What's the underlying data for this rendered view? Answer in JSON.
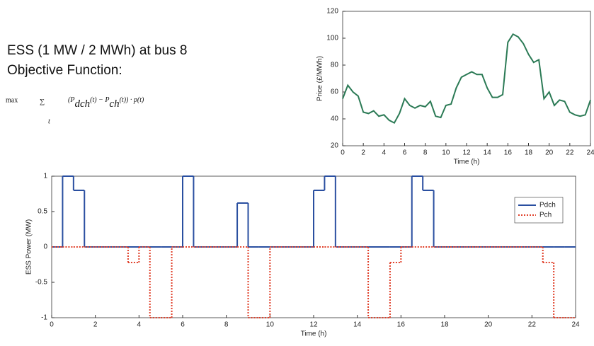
{
  "slide": {
    "lines": [
      "ESS (1 MW / 2 MWh) at bus 8",
      "Objective Function:"
    ],
    "formula": {
      "max": "max",
      "sum": "∑",
      "index": "t",
      "terms": [
        "(",
        "P",
        "dch",
        "(t) − ",
        "P",
        "ch",
        "(t)) · p(t)"
      ]
    }
  },
  "chart_data": [
    {
      "type": "line",
      "xlabel": "Time (h)",
      "ylabel": "Price (£/MWh)",
      "color": "#2b7a55",
      "linestyle": "solid",
      "x": [
        0,
        0.5,
        1,
        1.5,
        2,
        2.5,
        3,
        3.5,
        4,
        4.5,
        5,
        5.5,
        6,
        6.5,
        7,
        7.5,
        8,
        8.5,
        9,
        9.5,
        10,
        10.5,
        11,
        11.5,
        12,
        12.5,
        13,
        13.5,
        14,
        14.5,
        15,
        15.5,
        16,
        16.5,
        17,
        17.5,
        18,
        18.5,
        19,
        19.5,
        20,
        20.5,
        21,
        21.5,
        22,
        22.5,
        23,
        23.5,
        24
      ],
      "values": [
        55,
        65,
        60,
        57,
        45,
        44,
        46,
        42,
        43,
        39,
        37,
        44,
        55,
        50,
        48,
        50,
        49,
        53,
        42,
        41,
        50,
        51,
        63,
        71,
        73,
        75,
        73,
        73,
        63,
        56,
        56,
        58,
        97,
        103,
        101,
        96,
        88,
        82,
        84,
        55,
        60,
        50,
        54,
        53,
        45,
        43,
        42,
        43,
        54
      ],
      "xlim": [
        0,
        24
      ],
      "xticks": [
        0,
        2,
        4,
        6,
        8,
        10,
        12,
        14,
        16,
        18,
        20,
        22,
        24
      ],
      "ylim": [
        20,
        120
      ],
      "yticks": [
        20,
        40,
        60,
        80,
        100,
        120
      ]
    },
    {
      "type": "line",
      "drawstyle": "steps-post",
      "xlabel": "Time (h)",
      "ylabel": "ESS Power (MW)",
      "legend": "upper right",
      "x": [
        0,
        0.5,
        1,
        1.5,
        2,
        2.5,
        3,
        3.5,
        4,
        4.5,
        5,
        5.5,
        6,
        6.5,
        7,
        7.5,
        8,
        8.5,
        9,
        9.5,
        10,
        10.5,
        11,
        11.5,
        12,
        12.5,
        13,
        13.5,
        14,
        14.5,
        15,
        15.5,
        16,
        16.5,
        17,
        17.5,
        18,
        18.5,
        19,
        19.5,
        20,
        20.5,
        21,
        21.5,
        22,
        22.5,
        23,
        23.5
      ],
      "series": [
        {
          "name": "Pdch",
          "color": "#2a4fa0",
          "linestyle": "solid",
          "values": [
            0,
            1,
            0.8,
            0,
            0,
            0,
            0,
            0,
            0,
            0,
            0,
            0,
            1,
            0,
            0,
            0,
            0,
            0.62,
            0,
            0,
            0,
            0,
            0,
            0,
            0.8,
            1,
            0,
            0,
            0,
            0,
            0,
            0,
            0,
            1,
            0.8,
            0,
            0,
            0,
            0,
            0,
            0,
            0,
            0,
            0,
            0,
            0,
            0,
            0
          ]
        },
        {
          "name": "Pch",
          "color": "#e0402a",
          "linestyle": "dotted",
          "values": [
            0,
            0,
            0,
            0,
            0,
            0,
            0,
            -0.22,
            0,
            -1,
            -1,
            0,
            0,
            0,
            0,
            0,
            0,
            0,
            -1,
            -1,
            0,
            0,
            0,
            0,
            0,
            0,
            0,
            0,
            0,
            -1,
            -1,
            -0.22,
            0,
            0,
            0,
            0,
            0,
            0,
            0,
            0,
            0,
            0,
            0,
            0,
            0,
            -0.22,
            -1,
            -1
          ]
        }
      ],
      "xlim": [
        0,
        24
      ],
      "xticks": [
        0,
        2,
        4,
        6,
        8,
        10,
        12,
        14,
        16,
        18,
        20,
        22,
        24
      ],
      "ylim": [
        -1,
        1
      ],
      "yticks": [
        -1,
        -0.5,
        0,
        0.5,
        1
      ]
    }
  ]
}
